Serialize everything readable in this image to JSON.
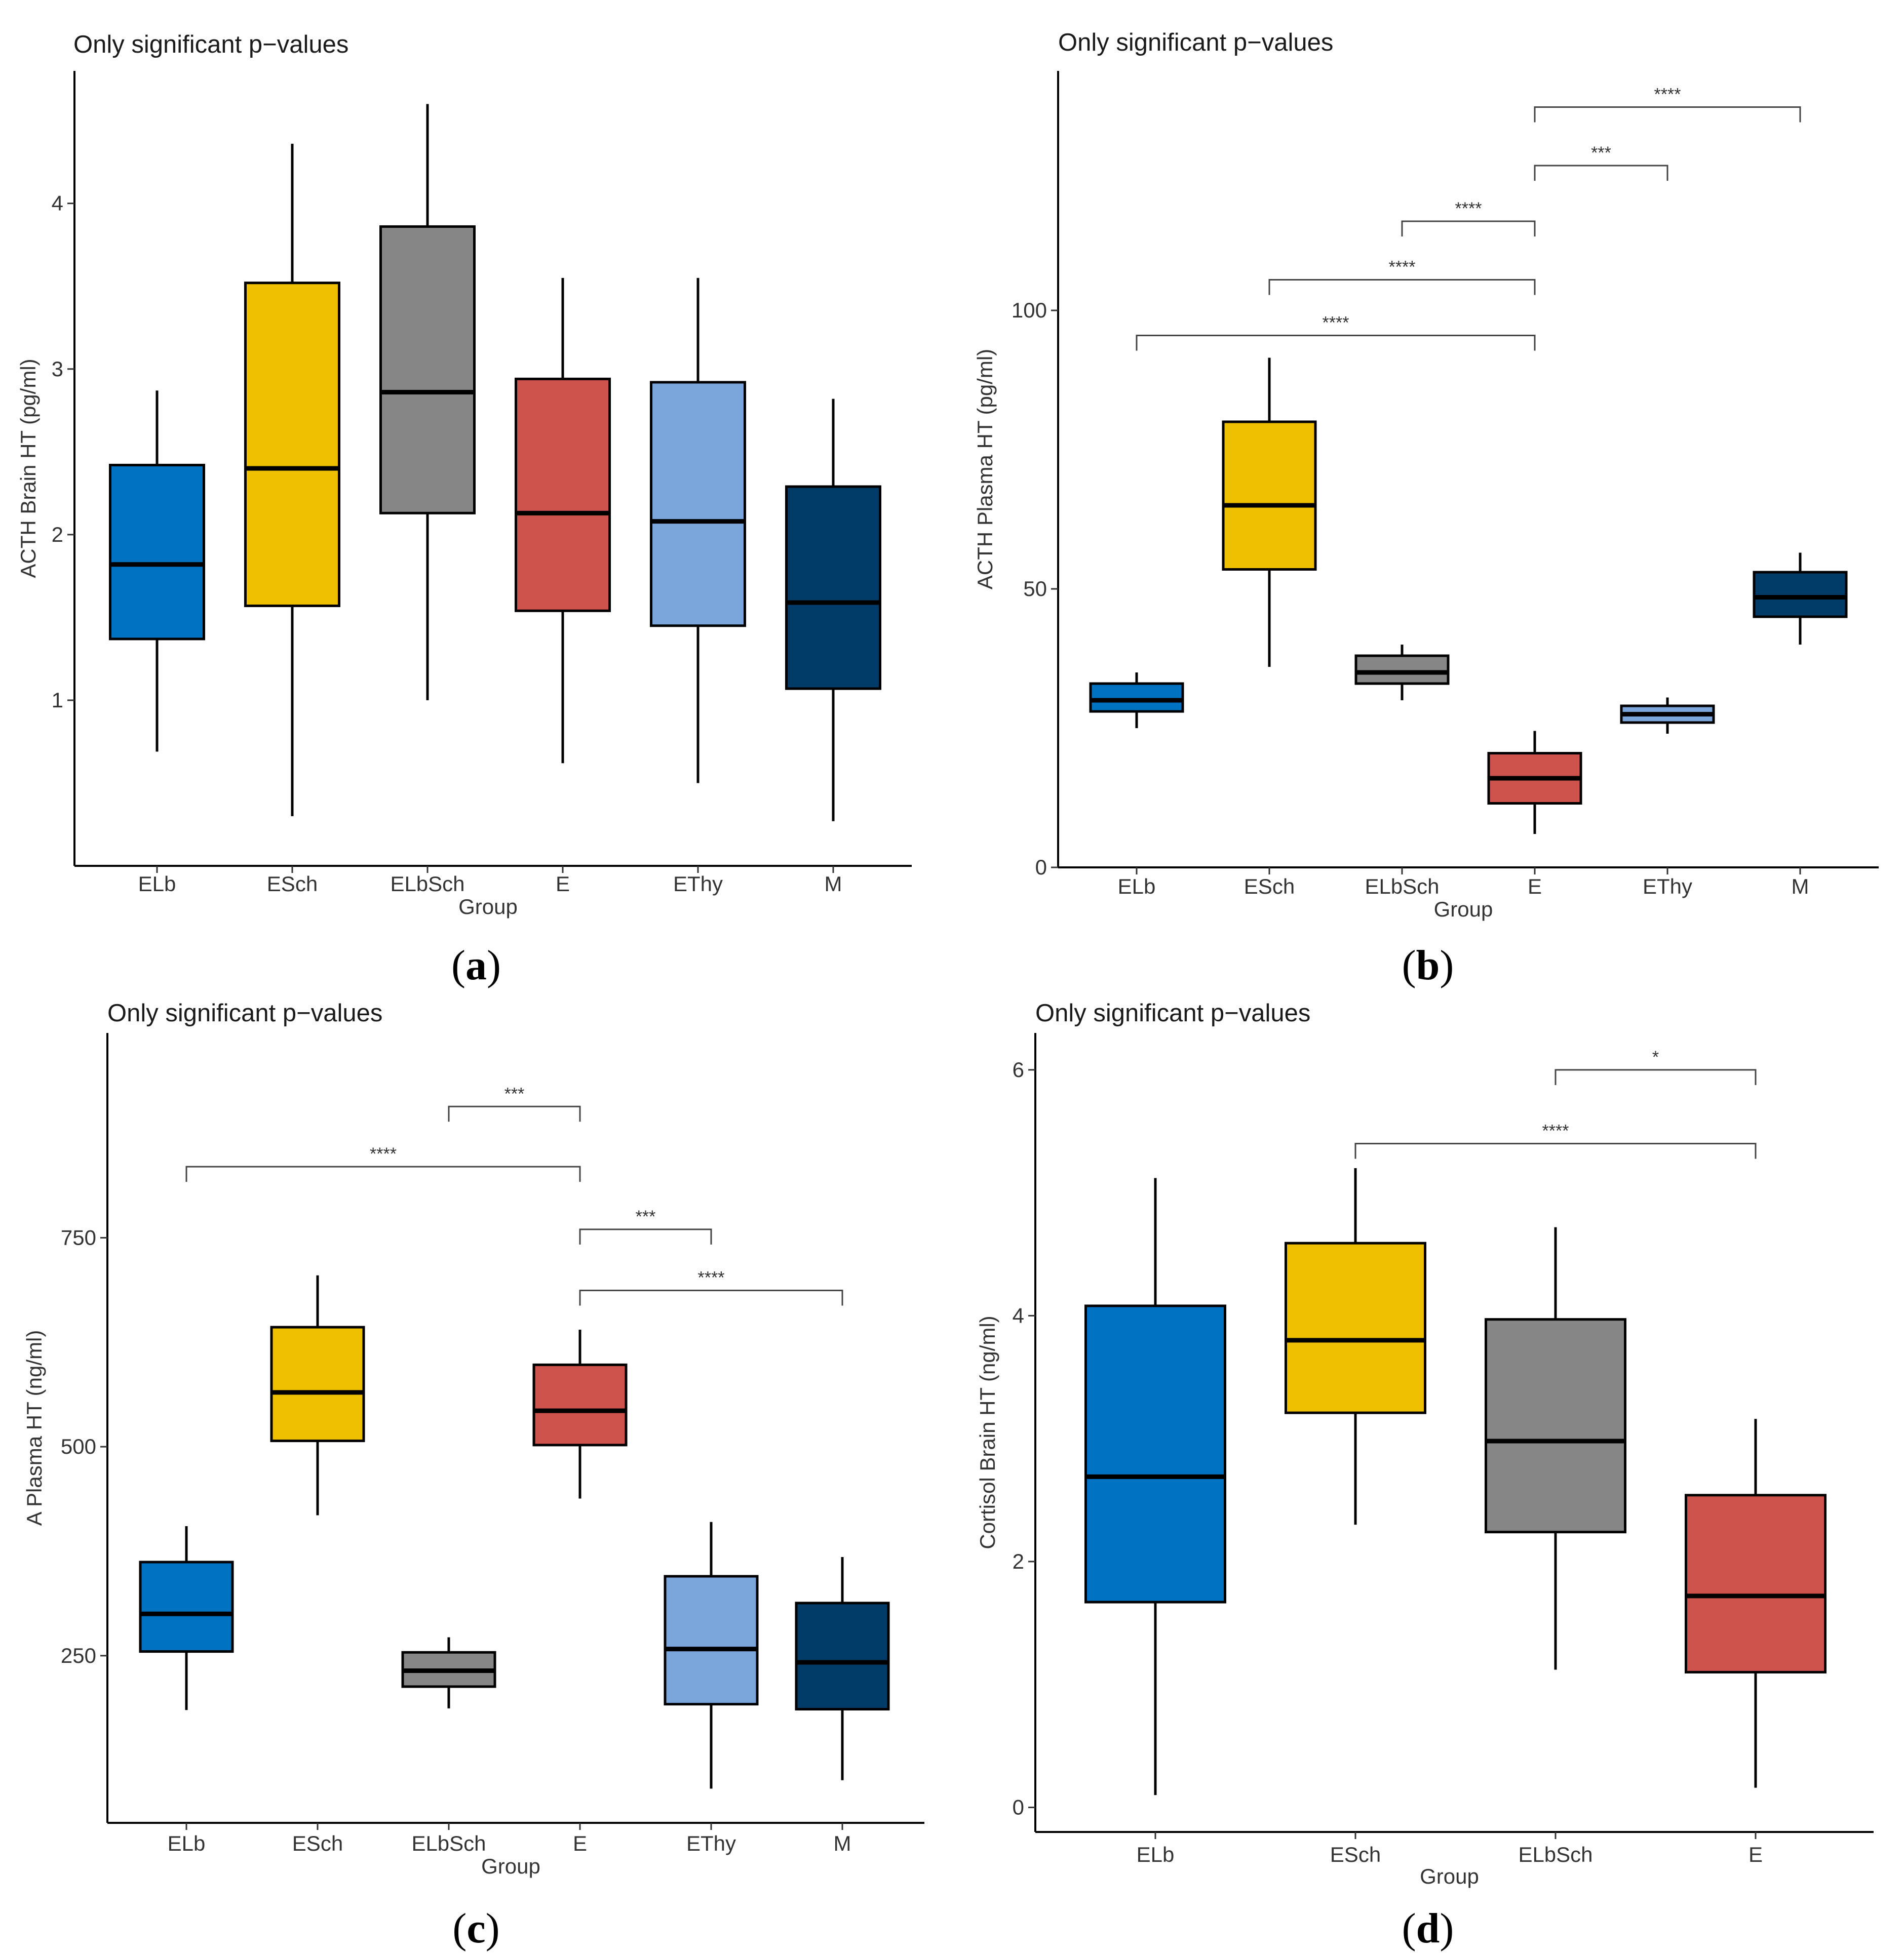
{
  "chart_data": [
    {
      "panel": "a",
      "type": "box",
      "title": "Only significant p−values",
      "xlabel": "Group",
      "ylabel": "ACTH Brain HT (pg/ml)",
      "ylim": [
        0,
        4.8
      ],
      "yticks": [
        1,
        2,
        3,
        4
      ],
      "categories": [
        "ELb",
        "ESch",
        "ELbSch",
        "E",
        "EThy",
        "M"
      ],
      "colors": [
        "#0072C2",
        "#EFC000",
        "#868686",
        "#CD534C",
        "#7AA6DC",
        "#003C67"
      ],
      "boxes": [
        {
          "min": 0.69,
          "q1": 1.37,
          "median": 1.82,
          "q3": 2.42,
          "max": 2.87
        },
        {
          "min": 0.3,
          "q1": 1.57,
          "median": 2.4,
          "q3": 3.52,
          "max": 4.36
        },
        {
          "min": 1.0,
          "q1": 2.13,
          "median": 2.86,
          "q3": 3.86,
          "max": 4.6
        },
        {
          "min": 0.62,
          "q1": 1.54,
          "median": 2.13,
          "q3": 2.94,
          "max": 3.55
        },
        {
          "min": 0.5,
          "q1": 1.45,
          "median": 2.08,
          "q3": 2.92,
          "max": 3.55
        },
        {
          "min": 0.27,
          "q1": 1.07,
          "median": 1.59,
          "q3": 2.29,
          "max": 2.82
        }
      ],
      "comparisons": [],
      "caption": "a"
    },
    {
      "panel": "b",
      "type": "box",
      "title": "Only significant p−values",
      "xlabel": "Group",
      "ylabel": "ACTH Plasma HT (pg/ml)",
      "ylim": [
        0,
        143
      ],
      "yticks": [
        0,
        50,
        100
      ],
      "categories": [
        "ELb",
        "ESch",
        "ELbSch",
        "E",
        "EThy",
        "M"
      ],
      "colors": [
        "#0072C2",
        "#EFC000",
        "#868686",
        "#CD534C",
        "#7AA6DC",
        "#003C67"
      ],
      "boxes": [
        {
          "min": 25,
          "q1": 28,
          "median": 30,
          "q3": 33,
          "max": 35
        },
        {
          "min": 36,
          "q1": 53.5,
          "median": 65,
          "q3": 80,
          "max": 91.5
        },
        {
          "min": 30,
          "q1": 33,
          "median": 35,
          "q3": 38,
          "max": 40
        },
        {
          "min": 6,
          "q1": 11.5,
          "median": 16,
          "q3": 20.5,
          "max": 24.5
        },
        {
          "min": 24,
          "q1": 26,
          "median": 27.5,
          "q3": 29,
          "max": 30.5
        },
        {
          "min": 40,
          "q1": 45,
          "median": 48.5,
          "q3": 53,
          "max": 56.5
        }
      ],
      "comparisons": [
        {
          "from": 0,
          "to": 3,
          "y": 95.5,
          "label": "****"
        },
        {
          "from": 1,
          "to": 3,
          "y": 105.5,
          "label": "****"
        },
        {
          "from": 2,
          "to": 3,
          "y": 116,
          "label": "****"
        },
        {
          "from": 3,
          "to": 4,
          "y": 126,
          "label": "***"
        },
        {
          "from": 3,
          "to": 5,
          "y": 136.5,
          "label": "****"
        }
      ],
      "caption": "b"
    },
    {
      "panel": "c",
      "type": "box",
      "title": "Only significant p−values",
      "xlabel": "Group",
      "ylabel": "A Plasma HT (ng/ml)",
      "ylim": [
        50,
        995
      ],
      "yticks": [
        250,
        500,
        750
      ],
      "categories": [
        "ELb",
        "ESch",
        "ELbSch",
        "E",
        "EThy",
        "M"
      ],
      "colors": [
        "#0072C2",
        "#EFC000",
        "#868686",
        "#CD534C",
        "#7AA6DC",
        "#003C67"
      ],
      "boxes": [
        {
          "min": 185,
          "q1": 255,
          "median": 300,
          "q3": 362,
          "max": 405
        },
        {
          "min": 418,
          "q1": 507,
          "median": 565,
          "q3": 643,
          "max": 705
        },
        {
          "min": 187,
          "q1": 213,
          "median": 232,
          "q3": 254,
          "max": 272
        },
        {
          "min": 438,
          "q1": 502,
          "median": 543,
          "q3": 598,
          "max": 640
        },
        {
          "min": 91,
          "q1": 192,
          "median": 258,
          "q3": 345,
          "max": 410
        },
        {
          "min": 101,
          "q1": 186,
          "median": 242,
          "q3": 313,
          "max": 368
        }
      ],
      "comparisons": [
        {
          "from": 2,
          "to": 3,
          "y": 907,
          "label": "***"
        },
        {
          "from": 0,
          "to": 3,
          "y": 835,
          "label": "****"
        },
        {
          "from": 3,
          "to": 4,
          "y": 760,
          "label": "***"
        },
        {
          "from": 3,
          "to": 5,
          "y": 687,
          "label": "****"
        }
      ],
      "caption": "c"
    },
    {
      "panel": "d",
      "type": "box",
      "title": "Only significant p−values",
      "xlabel": "Group",
      "ylabel": "Cortisol Brain HT (ng/ml)",
      "ylim": [
        -0.2,
        6.3
      ],
      "yticks": [
        0,
        2,
        4,
        6
      ],
      "categories": [
        "ELb",
        "ESch",
        "ELbSch",
        "E"
      ],
      "colors": [
        "#0072C2",
        "#EFC000",
        "#868686",
        "#CD534C"
      ],
      "boxes": [
        {
          "min": 0.1,
          "q1": 1.67,
          "median": 2.69,
          "q3": 4.08,
          "max": 5.12
        },
        {
          "min": 2.3,
          "q1": 3.21,
          "median": 3.8,
          "q3": 4.59,
          "max": 5.2
        },
        {
          "min": 1.12,
          "q1": 2.24,
          "median": 2.98,
          "q3": 3.97,
          "max": 4.72
        },
        {
          "min": 0.16,
          "q1": 1.1,
          "median": 1.72,
          "q3": 2.54,
          "max": 3.16
        }
      ],
      "comparisons": [
        {
          "from": 2,
          "to": 3,
          "y": 6.0,
          "label": "*"
        },
        {
          "from": 1,
          "to": 3,
          "y": 5.4,
          "label": "****"
        }
      ],
      "caption": "d"
    }
  ]
}
